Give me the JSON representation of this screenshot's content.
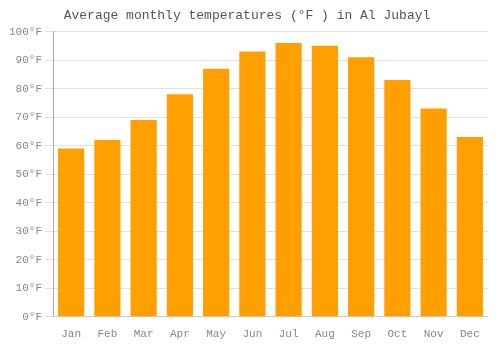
{
  "chart_data": {
    "type": "bar",
    "title": "Average monthly temperatures (°F ) in Al Jubayl",
    "categories": [
      "Jan",
      "Feb",
      "Mar",
      "Apr",
      "May",
      "Jun",
      "Jul",
      "Aug",
      "Sep",
      "Oct",
      "Nov",
      "Dec"
    ],
    "values": [
      59,
      62,
      69,
      78,
      87,
      93,
      96,
      95,
      91,
      83,
      73,
      63
    ],
    "color": "#FFA000",
    "ylim": [
      0,
      100
    ],
    "yticks": [
      {
        "value": 0,
        "label": "0°F"
      },
      {
        "value": 10,
        "label": "10°F"
      },
      {
        "value": 20,
        "label": "20°F"
      },
      {
        "value": 30,
        "label": "30°F"
      },
      {
        "value": 40,
        "label": "40°F"
      },
      {
        "value": 50,
        "label": "50°F"
      },
      {
        "value": 60,
        "label": "60°F"
      },
      {
        "value": 70,
        "label": "70°F"
      },
      {
        "value": 80,
        "label": "80°F"
      },
      {
        "value": 90,
        "label": "90°F"
      },
      {
        "value": 100,
        "label": "100°F"
      }
    ],
    "grid": true
  }
}
